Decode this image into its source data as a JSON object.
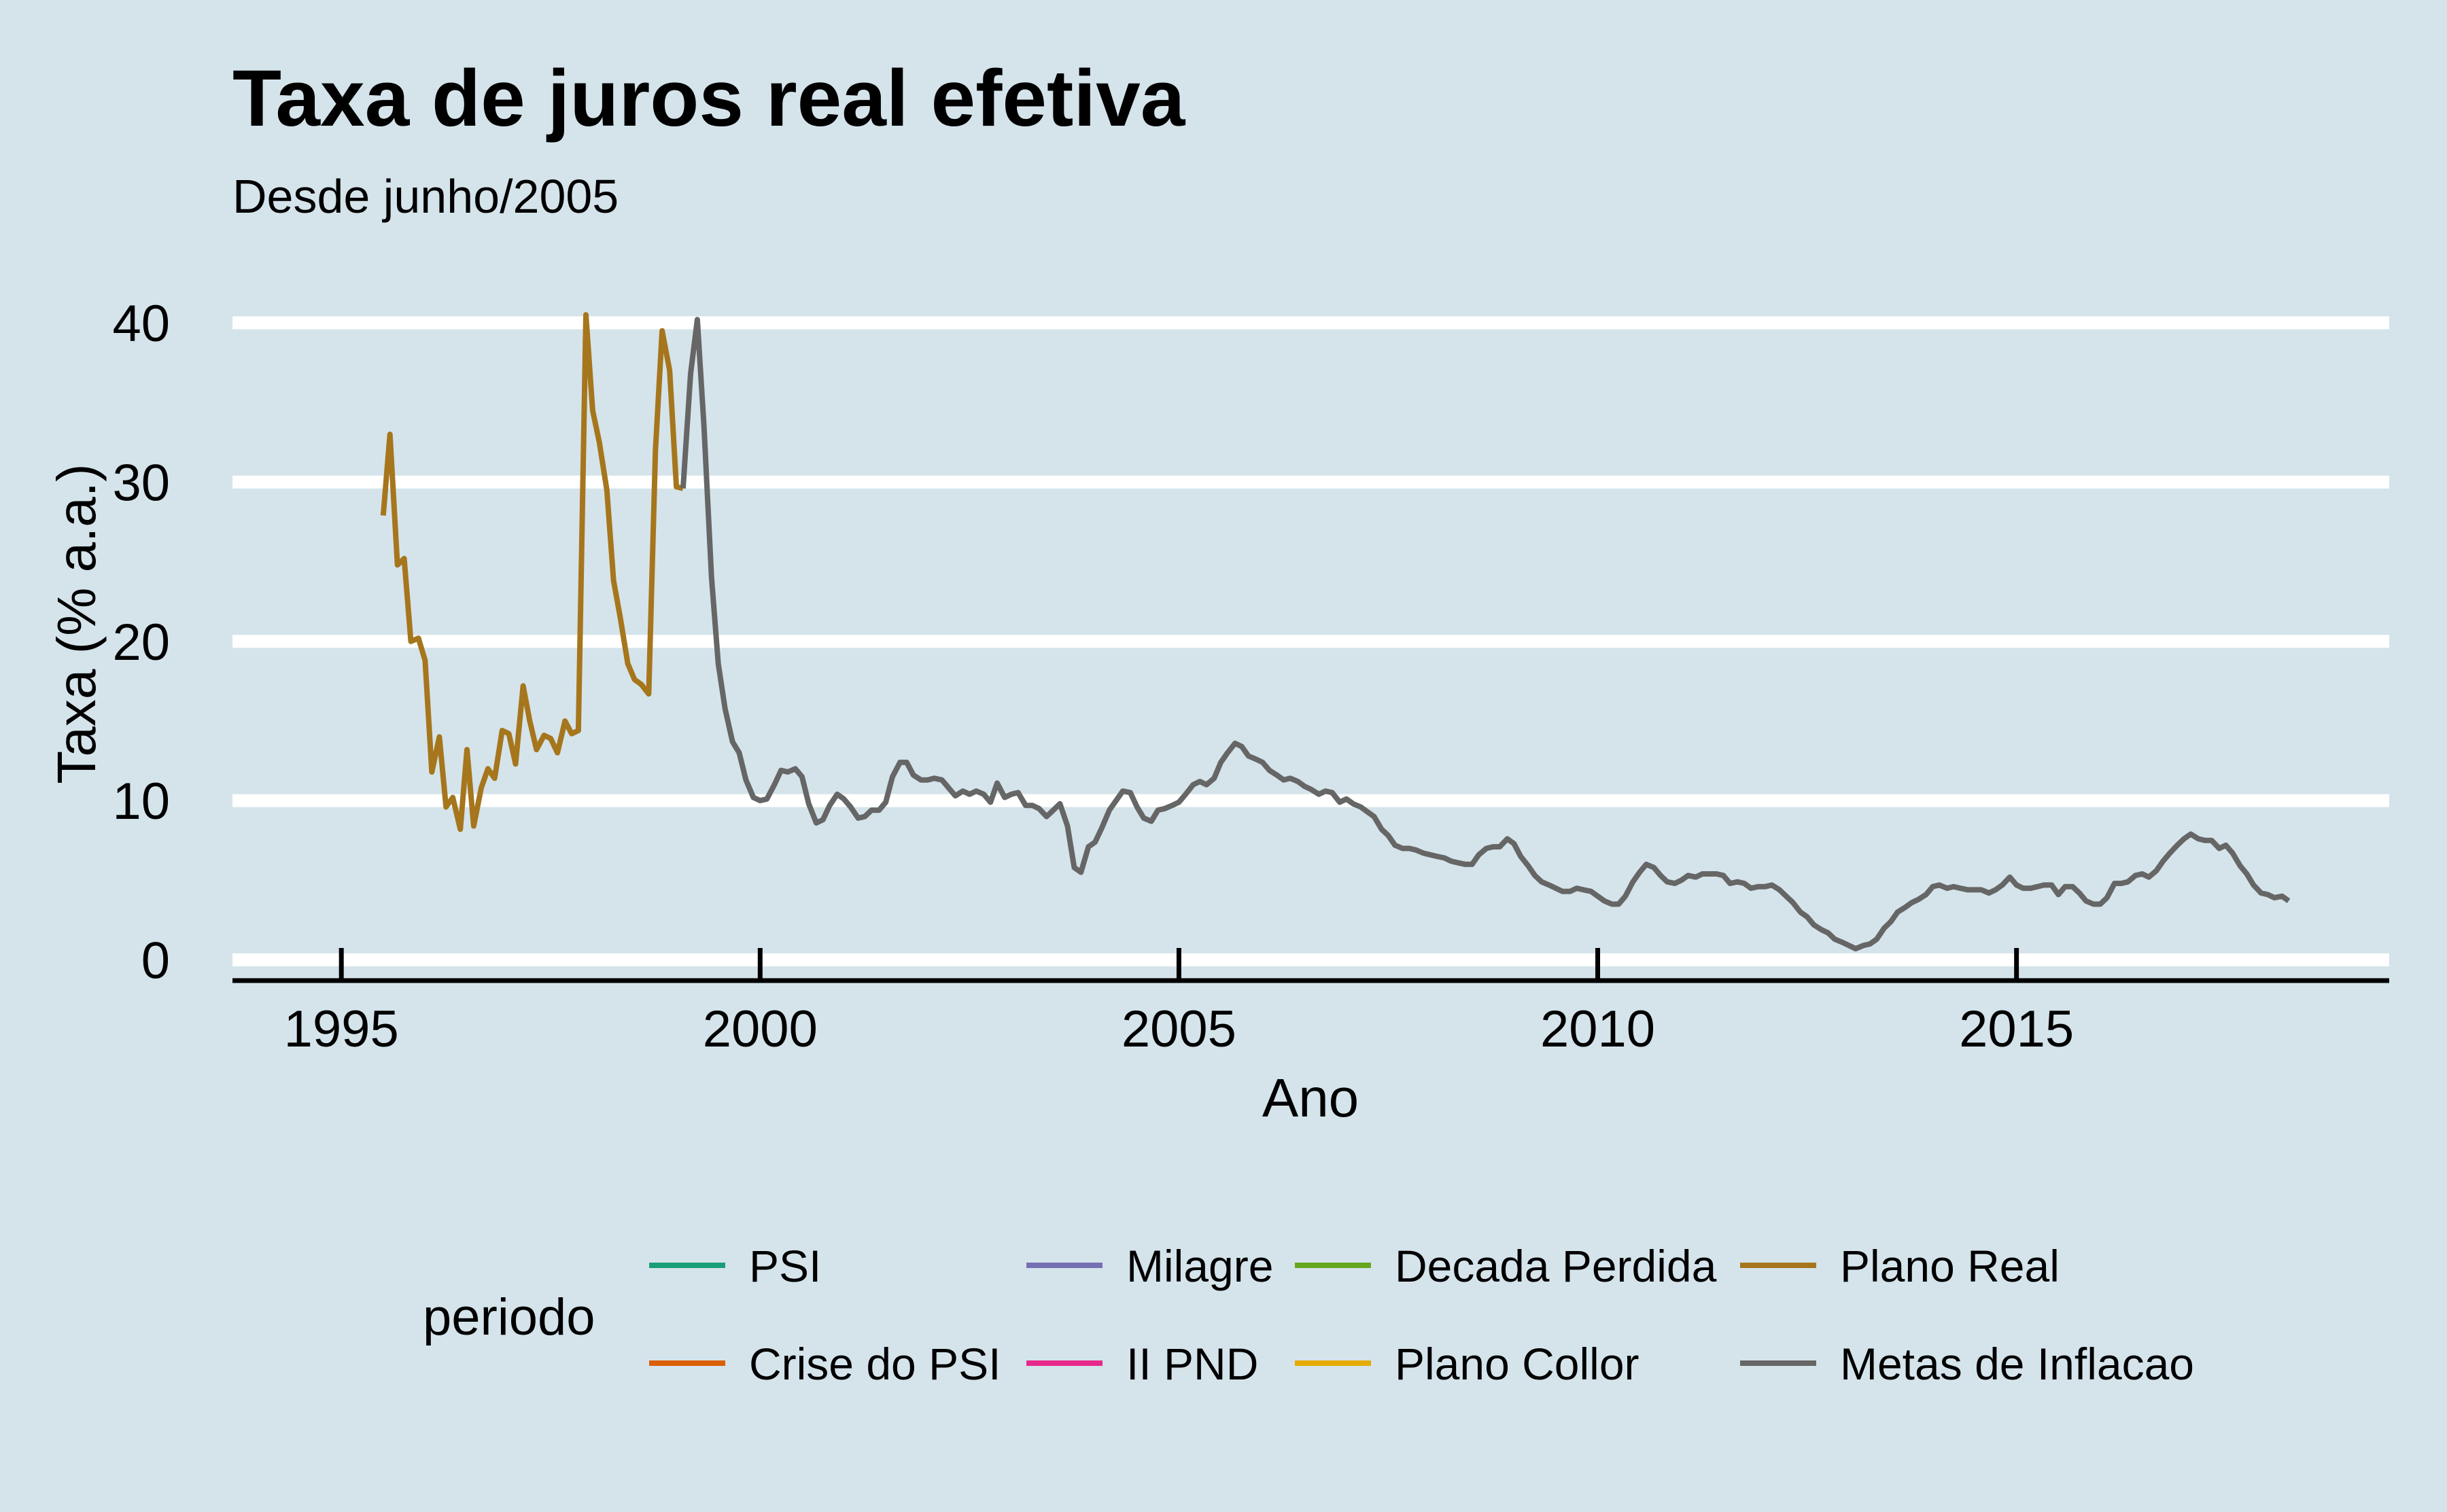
{
  "chart_data": {
    "type": "line",
    "title": "Taxa de juros real efetiva",
    "subtitle": "Desde junho/2005",
    "xlabel": "Ano",
    "ylabel": "Taxa (% a.a.)",
    "xlim": [
      1993.7,
      2019.45
    ],
    "ylim": [
      -1.3,
      43.2
    ],
    "x_ticks": [
      1995,
      2000,
      2005,
      2010,
      2015
    ],
    "x_tick_labels": [
      "1995",
      "2000",
      "2005",
      "2010",
      "2015"
    ],
    "y_ticks": [
      0,
      10,
      20,
      30,
      40
    ],
    "y_tick_labels": [
      "0",
      "10",
      "20",
      "30",
      "40"
    ],
    "grid": "horizontal",
    "legend": {
      "title": "periodo",
      "position": "bottom",
      "entries": [
        {
          "label": "PSI",
          "color": "#1b9e77"
        },
        {
          "label": "Crise do PSI",
          "color": "#d95f02"
        },
        {
          "label": "Milagre",
          "color": "#7570b3"
        },
        {
          "label": "II PND",
          "color": "#e7298a"
        },
        {
          "label": "Decada Perdida",
          "color": "#66a61e"
        },
        {
          "label": "Plano Collor",
          "color": "#e6ab02"
        },
        {
          "label": "Plano Real",
          "color": "#a6761d"
        },
        {
          "label": "Metas de Inflacao",
          "color": "#666666"
        }
      ]
    },
    "series": [
      {
        "name": "Plano Real",
        "color": "#a6761d",
        "points": [
          [
            1995.5,
            27.9
          ],
          [
            1995.58,
            33.0
          ],
          [
            1995.67,
            24.8
          ],
          [
            1995.75,
            25.2
          ],
          [
            1995.83,
            20.0
          ],
          [
            1995.92,
            20.2
          ],
          [
            1996.0,
            18.8
          ],
          [
            1996.08,
            11.8
          ],
          [
            1996.17,
            14.0
          ],
          [
            1996.25,
            9.6
          ],
          [
            1996.33,
            10.2
          ],
          [
            1996.42,
            8.2
          ],
          [
            1996.5,
            13.2
          ],
          [
            1996.58,
            8.4
          ],
          [
            1996.67,
            10.8
          ],
          [
            1996.75,
            12.0
          ],
          [
            1996.83,
            11.4
          ],
          [
            1996.92,
            14.4
          ],
          [
            1997.0,
            14.2
          ],
          [
            1997.08,
            12.3
          ],
          [
            1997.17,
            17.2
          ],
          [
            1997.25,
            15.0
          ],
          [
            1997.33,
            13.2
          ],
          [
            1997.42,
            14.1
          ],
          [
            1997.5,
            13.9
          ],
          [
            1997.58,
            13.0
          ],
          [
            1997.67,
            15.0
          ],
          [
            1997.75,
            14.2
          ],
          [
            1997.83,
            14.4
          ],
          [
            1997.92,
            40.5
          ],
          [
            1998.0,
            34.5
          ],
          [
            1998.08,
            32.5
          ],
          [
            1998.17,
            29.5
          ],
          [
            1998.25,
            23.8
          ],
          [
            1998.33,
            21.5
          ],
          [
            1998.42,
            18.6
          ],
          [
            1998.5,
            17.6
          ],
          [
            1998.58,
            17.3
          ],
          [
            1998.67,
            16.7
          ],
          [
            1998.75,
            32.0
          ],
          [
            1998.83,
            39.5
          ],
          [
            1998.92,
            37.0
          ],
          [
            1999.0,
            29.7
          ],
          [
            1999.08,
            29.6
          ]
        ]
      },
      {
        "name": "Metas de Inflacao",
        "color": "#666666",
        "points": [
          [
            1999.08,
            29.6
          ],
          [
            1999.17,
            36.8
          ],
          [
            1999.25,
            40.2
          ],
          [
            1999.33,
            33.5
          ],
          [
            1999.42,
            24.0
          ],
          [
            1999.5,
            18.6
          ],
          [
            1999.58,
            15.8
          ],
          [
            1999.67,
            13.7
          ],
          [
            1999.75,
            13.0
          ],
          [
            1999.83,
            11.3
          ],
          [
            1999.92,
            10.2
          ],
          [
            2000.0,
            10.0
          ],
          [
            2000.08,
            10.1
          ],
          [
            2000.17,
            11.0
          ],
          [
            2000.25,
            11.9
          ],
          [
            2000.33,
            11.8
          ],
          [
            2000.42,
            12.0
          ],
          [
            2000.5,
            11.5
          ],
          [
            2000.58,
            9.8
          ],
          [
            2000.67,
            8.6
          ],
          [
            2000.75,
            8.8
          ],
          [
            2000.83,
            9.7
          ],
          [
            2000.92,
            10.4
          ],
          [
            2001.0,
            10.1
          ],
          [
            2001.08,
            9.6
          ],
          [
            2001.17,
            8.9
          ],
          [
            2001.25,
            9.0
          ],
          [
            2001.33,
            9.4
          ],
          [
            2001.42,
            9.4
          ],
          [
            2001.5,
            9.9
          ],
          [
            2001.58,
            11.5
          ],
          [
            2001.67,
            12.4
          ],
          [
            2001.75,
            12.4
          ],
          [
            2001.83,
            11.6
          ],
          [
            2001.92,
            11.3
          ],
          [
            2002.0,
            11.3
          ],
          [
            2002.08,
            11.4
          ],
          [
            2002.17,
            11.3
          ],
          [
            2002.25,
            10.8
          ],
          [
            2002.33,
            10.3
          ],
          [
            2002.42,
            10.6
          ],
          [
            2002.5,
            10.4
          ],
          [
            2002.58,
            10.6
          ],
          [
            2002.67,
            10.4
          ],
          [
            2002.75,
            9.9
          ],
          [
            2002.83,
            11.1
          ],
          [
            2002.92,
            10.2
          ],
          [
            2003.0,
            10.4
          ],
          [
            2003.08,
            10.5
          ],
          [
            2003.17,
            9.7
          ],
          [
            2003.25,
            9.7
          ],
          [
            2003.33,
            9.5
          ],
          [
            2003.42,
            9.0
          ],
          [
            2003.5,
            9.4
          ],
          [
            2003.58,
            9.8
          ],
          [
            2003.67,
            8.4
          ],
          [
            2003.75,
            5.8
          ],
          [
            2003.83,
            5.5
          ],
          [
            2003.92,
            7.1
          ],
          [
            2004.0,
            7.4
          ],
          [
            2004.08,
            8.3
          ],
          [
            2004.17,
            9.4
          ],
          [
            2004.25,
            10.0
          ],
          [
            2004.33,
            10.6
          ],
          [
            2004.42,
            10.5
          ],
          [
            2004.5,
            9.6
          ],
          [
            2004.58,
            8.9
          ],
          [
            2004.67,
            8.7
          ],
          [
            2004.75,
            9.4
          ],
          [
            2004.83,
            9.5
          ],
          [
            2004.92,
            9.7
          ],
          [
            2005.0,
            9.9
          ],
          [
            2005.08,
            10.4
          ],
          [
            2005.17,
            11.0
          ],
          [
            2005.25,
            11.2
          ],
          [
            2005.33,
            11.0
          ],
          [
            2005.42,
            11.4
          ],
          [
            2005.5,
            12.4
          ],
          [
            2005.58,
            13.0
          ],
          [
            2005.67,
            13.6
          ],
          [
            2005.75,
            13.4
          ],
          [
            2005.83,
            12.8
          ],
          [
            2005.92,
            12.6
          ],
          [
            2006.0,
            12.4
          ],
          [
            2006.08,
            11.9
          ],
          [
            2006.17,
            11.6
          ],
          [
            2006.25,
            11.3
          ],
          [
            2006.33,
            11.4
          ],
          [
            2006.42,
            11.2
          ],
          [
            2006.5,
            10.9
          ],
          [
            2006.58,
            10.7
          ],
          [
            2006.67,
            10.4
          ],
          [
            2006.75,
            10.6
          ],
          [
            2006.83,
            10.5
          ],
          [
            2006.92,
            9.9
          ],
          [
            2007.0,
            10.1
          ],
          [
            2007.08,
            9.8
          ],
          [
            2007.17,
            9.6
          ],
          [
            2007.25,
            9.3
          ],
          [
            2007.33,
            9.0
          ],
          [
            2007.42,
            8.2
          ],
          [
            2007.5,
            7.8
          ],
          [
            2007.58,
            7.2
          ],
          [
            2007.67,
            7.0
          ],
          [
            2007.75,
            7.0
          ],
          [
            2007.83,
            6.9
          ],
          [
            2007.92,
            6.7
          ],
          [
            2008.0,
            6.6
          ],
          [
            2008.08,
            6.5
          ],
          [
            2008.17,
            6.4
          ],
          [
            2008.25,
            6.2
          ],
          [
            2008.33,
            6.1
          ],
          [
            2008.42,
            6.0
          ],
          [
            2008.5,
            6.0
          ],
          [
            2008.58,
            6.6
          ],
          [
            2008.67,
            7.0
          ],
          [
            2008.75,
            7.1
          ],
          [
            2008.83,
            7.1
          ],
          [
            2008.92,
            7.6
          ],
          [
            2009.0,
            7.3
          ],
          [
            2009.08,
            6.5
          ],
          [
            2009.17,
            5.9
          ],
          [
            2009.25,
            5.3
          ],
          [
            2009.33,
            4.9
          ],
          [
            2009.42,
            4.7
          ],
          [
            2009.5,
            4.5
          ],
          [
            2009.58,
            4.3
          ],
          [
            2009.67,
            4.3
          ],
          [
            2009.75,
            4.5
          ],
          [
            2009.83,
            4.4
          ],
          [
            2009.92,
            4.3
          ],
          [
            2010.0,
            4.0
          ],
          [
            2010.08,
            3.7
          ],
          [
            2010.17,
            3.5
          ],
          [
            2010.25,
            3.5
          ],
          [
            2010.33,
            4.0
          ],
          [
            2010.42,
            4.9
          ],
          [
            2010.5,
            5.5
          ],
          [
            2010.58,
            6.0
          ],
          [
            2010.67,
            5.8
          ],
          [
            2010.75,
            5.3
          ],
          [
            2010.83,
            4.9
          ],
          [
            2010.92,
            4.8
          ],
          [
            2011.0,
            5.0
          ],
          [
            2011.08,
            5.3
          ],
          [
            2011.17,
            5.2
          ],
          [
            2011.25,
            5.4
          ],
          [
            2011.33,
            5.4
          ],
          [
            2011.42,
            5.4
          ],
          [
            2011.5,
            5.3
          ],
          [
            2011.58,
            4.8
          ],
          [
            2011.67,
            4.9
          ],
          [
            2011.75,
            4.8
          ],
          [
            2011.83,
            4.5
          ],
          [
            2011.92,
            4.6
          ],
          [
            2012.0,
            4.6
          ],
          [
            2012.08,
            4.7
          ],
          [
            2012.17,
            4.4
          ],
          [
            2012.25,
            4.0
          ],
          [
            2012.33,
            3.6
          ],
          [
            2012.42,
            3.0
          ],
          [
            2012.5,
            2.7
          ],
          [
            2012.58,
            2.2
          ],
          [
            2012.67,
            1.9
          ],
          [
            2012.75,
            1.7
          ],
          [
            2012.83,
            1.3
          ],
          [
            2012.92,
            1.1
          ],
          [
            2013.0,
            0.9
          ],
          [
            2013.08,
            0.7
          ],
          [
            2013.17,
            0.9
          ],
          [
            2013.25,
            1.0
          ],
          [
            2013.33,
            1.3
          ],
          [
            2013.42,
            2.0
          ],
          [
            2013.5,
            2.4
          ],
          [
            2013.58,
            3.0
          ],
          [
            2013.67,
            3.3
          ],
          [
            2013.75,
            3.6
          ],
          [
            2013.83,
            3.8
          ],
          [
            2013.92,
            4.1
          ],
          [
            2014.0,
            4.6
          ],
          [
            2014.08,
            4.7
          ],
          [
            2014.17,
            4.5
          ],
          [
            2014.25,
            4.6
          ],
          [
            2014.33,
            4.5
          ],
          [
            2014.42,
            4.4
          ],
          [
            2014.5,
            4.4
          ],
          [
            2014.58,
            4.4
          ],
          [
            2014.67,
            4.2
          ],
          [
            2014.75,
            4.4
          ],
          [
            2014.83,
            4.7
          ],
          [
            2014.92,
            5.2
          ],
          [
            2015.0,
            4.7
          ],
          [
            2015.08,
            4.5
          ],
          [
            2015.17,
            4.5
          ],
          [
            2015.25,
            4.6
          ],
          [
            2015.33,
            4.7
          ],
          [
            2015.42,
            4.7
          ],
          [
            2015.5,
            4.1
          ],
          [
            2015.58,
            4.6
          ],
          [
            2015.67,
            4.6
          ],
          [
            2015.75,
            4.2
          ],
          [
            2015.83,
            3.7
          ],
          [
            2015.92,
            3.5
          ],
          [
            2016.0,
            3.5
          ],
          [
            2016.08,
            3.9
          ],
          [
            2016.17,
            4.8
          ],
          [
            2016.25,
            4.8
          ],
          [
            2016.33,
            4.9
          ],
          [
            2016.42,
            5.3
          ],
          [
            2016.5,
            5.4
          ],
          [
            2016.58,
            5.2
          ],
          [
            2016.67,
            5.6
          ],
          [
            2016.75,
            6.2
          ],
          [
            2016.83,
            6.7
          ],
          [
            2016.92,
            7.2
          ],
          [
            2017.0,
            7.6
          ],
          [
            2017.08,
            7.9
          ],
          [
            2017.17,
            7.6
          ],
          [
            2017.25,
            7.5
          ],
          [
            2017.33,
            7.5
          ],
          [
            2017.42,
            7.0
          ],
          [
            2017.5,
            7.2
          ],
          [
            2017.58,
            6.7
          ],
          [
            2017.67,
            5.9
          ],
          [
            2017.75,
            5.4
          ],
          [
            2017.83,
            4.7
          ],
          [
            2017.92,
            4.2
          ],
          [
            2018.0,
            4.1
          ],
          [
            2018.08,
            3.9
          ],
          [
            2018.17,
            4.0
          ],
          [
            2018.25,
            3.7
          ]
        ]
      }
    ]
  }
}
